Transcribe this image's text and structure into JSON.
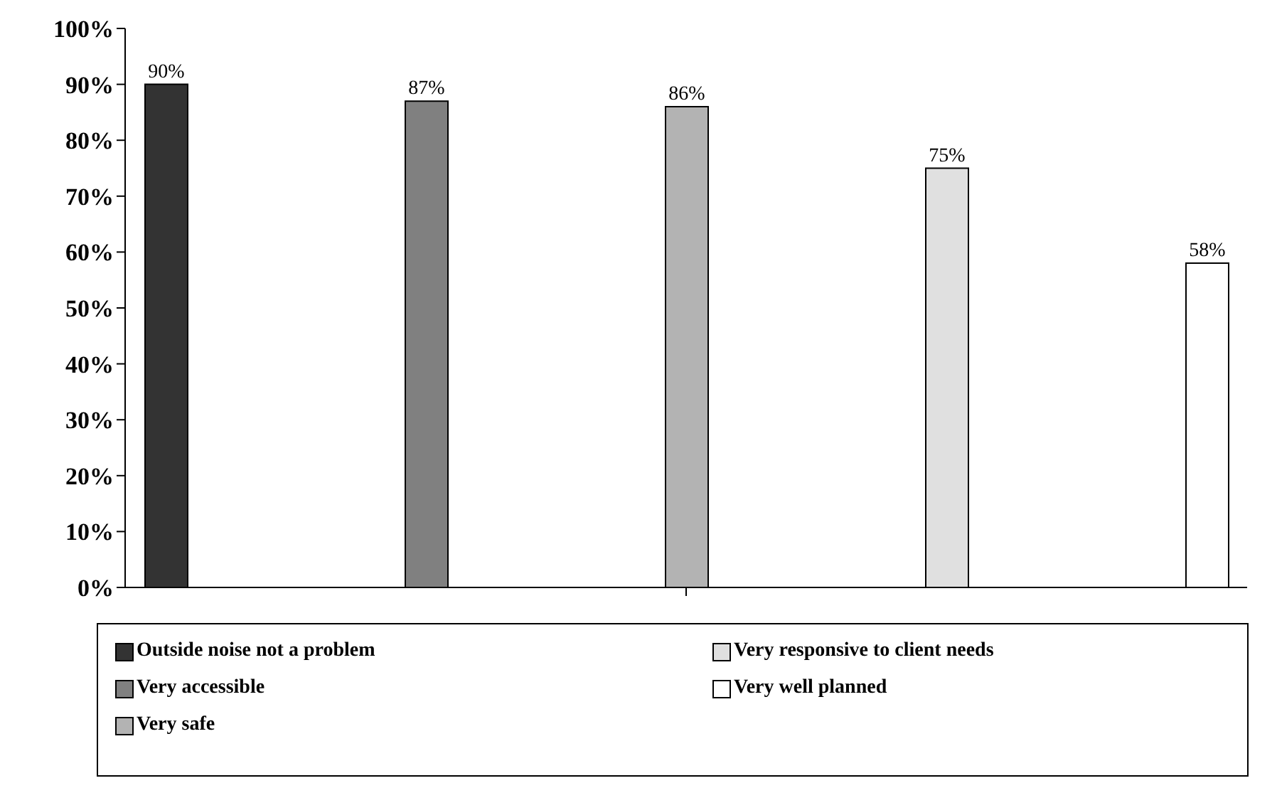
{
  "chart_data": {
    "type": "bar",
    "categories": [
      null
    ],
    "series": [
      {
        "name": "Outside noise not a problem",
        "color": "#333333",
        "values": [
          90
        ],
        "value_labels": [
          "90%"
        ]
      },
      {
        "name": "Very accessible",
        "color": "#808080",
        "values": [
          87
        ],
        "value_labels": [
          "87%"
        ]
      },
      {
        "name": "Very safe",
        "color": "#b3b3b3",
        "values": [
          86
        ],
        "value_labels": [
          "86%"
        ]
      },
      {
        "name": "Very responsive to client needs",
        "color": "#e0e0e0",
        "values": [
          75
        ],
        "value_labels": [
          "75%"
        ]
      },
      {
        "name": "Very well planned",
        "color": "#ffffff",
        "values": [
          58
        ],
        "value_labels": [
          "58%"
        ]
      }
    ],
    "ylim": [
      0,
      100
    ],
    "yticks": [
      {
        "value": 0,
        "label": "0%"
      },
      {
        "value": 10,
        "label": "10%"
      },
      {
        "value": 20,
        "label": "20%"
      },
      {
        "value": 30,
        "label": "30%"
      },
      {
        "value": 40,
        "label": "40%"
      },
      {
        "value": 50,
        "label": "50%"
      },
      {
        "value": 60,
        "label": "60%"
      },
      {
        "value": 70,
        "label": "70%"
      },
      {
        "value": 80,
        "label": "80%"
      },
      {
        "value": 90,
        "label": "90%"
      },
      {
        "value": 100,
        "label": "100%"
      }
    ],
    "grid": false,
    "legend": "bottom"
  }
}
